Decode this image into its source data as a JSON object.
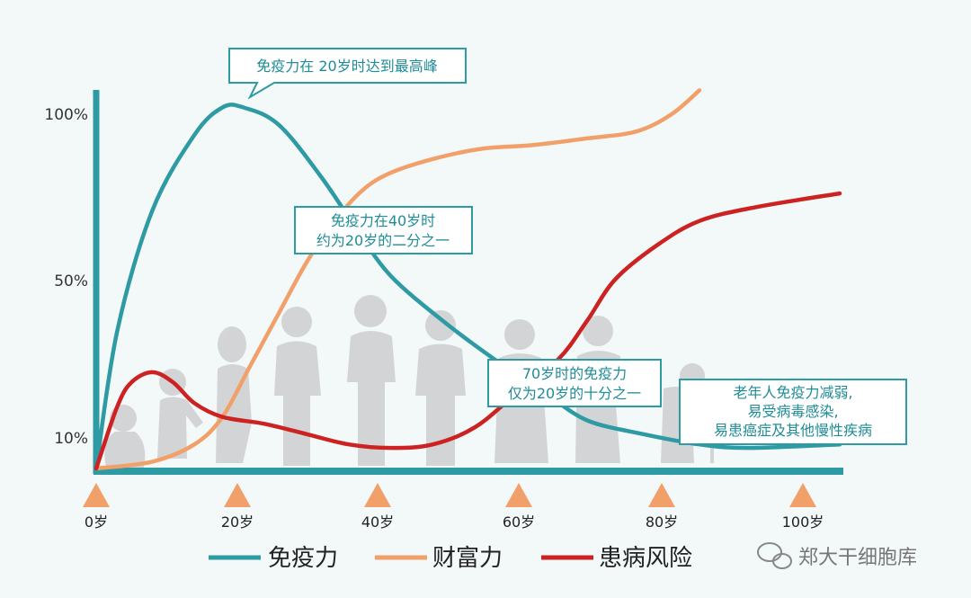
{
  "chart_data": {
    "type": "line",
    "title": "",
    "x_ticks": [
      "0岁",
      "20岁",
      "40岁",
      "60岁",
      "80岁",
      "100岁"
    ],
    "y_ticks": [
      "10%",
      "50%",
      "100%"
    ],
    "xlim": [
      0,
      106
    ],
    "ylim": [
      0,
      108
    ],
    "series": [
      {
        "name": "免疫力",
        "color": "#2e9aa3",
        "x": [
          0,
          3,
          8,
          14,
          18,
          21,
          26,
          32,
          37,
          42,
          50,
          58,
          64,
          70,
          78,
          86,
          93,
          106
        ],
        "y": [
          0,
          40,
          75,
          97,
          105,
          105,
          100,
          85,
          70,
          56,
          42,
          30,
          22,
          14,
          10,
          7,
          6,
          7
        ]
      },
      {
        "name": "财富力",
        "color": "#f2a06a",
        "x": [
          0,
          8,
          14,
          18,
          22,
          26,
          30,
          34,
          38,
          42,
          48,
          55,
          62,
          70,
          77,
          82,
          86
        ],
        "y": [
          0,
          2,
          7,
          15,
          30,
          45,
          60,
          72,
          81,
          86,
          90,
          93,
          94,
          96,
          98,
          103,
          110
        ]
      },
      {
        "name": "患病风险",
        "color": "#cc2222",
        "x": [
          0,
          3,
          5,
          8,
          11,
          14,
          18,
          24,
          30,
          36,
          42,
          48,
          54,
          60,
          66,
          70,
          74,
          80,
          86,
          94,
          106
        ],
        "y": [
          0,
          18,
          25,
          28,
          25,
          19,
          15,
          13,
          10,
          7,
          6,
          7,
          12,
          22,
          32,
          43,
          55,
          65,
          72,
          76,
          80
        ]
      }
    ]
  },
  "callouts": {
    "peak": "免疫力在 20岁时达到最高峰",
    "forty_line1": "免疫力在40岁时",
    "forty_line2": "约为20岁的二分之一",
    "seventy_line1": "70岁时的免疫力",
    "seventy_line2": "仅为20岁的十分之一",
    "elderly_line1": "老年人免疫力减弱,",
    "elderly_line2": "易受病毒感染,",
    "elderly_line3": "易患癌症及其他慢性疾病"
  },
  "legend": {
    "immunity": "免疫力",
    "wealth": "财富力",
    "disease": "患病风险"
  },
  "watermark": "郑大干细胞库",
  "colors": {
    "axis": "#2e9aa3",
    "marker": "#f2a06a",
    "silhouette": "#c9c9c9",
    "background": "#f3f8f9"
  }
}
